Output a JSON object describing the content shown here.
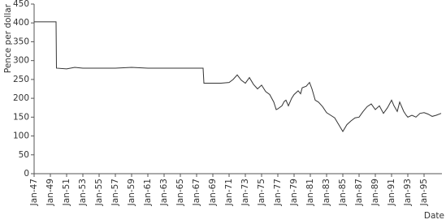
{
  "chart_data": {
    "type": "line",
    "y_label": "Pence per dollar",
    "x_label": "Date",
    "xlim": [
      1947,
      1997.2
    ],
    "ylim": [
      0,
      450
    ],
    "yticks": [
      0,
      50,
      100,
      150,
      200,
      250,
      300,
      350,
      400,
      450
    ],
    "xticks": [
      {
        "value": 1947,
        "label": "Jan-47"
      },
      {
        "value": 1949,
        "label": "Jan-49"
      },
      {
        "value": 1951,
        "label": "Jan-51"
      },
      {
        "value": 1953,
        "label": "Jan-53"
      },
      {
        "value": 1955,
        "label": "Jan-55"
      },
      {
        "value": 1957,
        "label": "Jan-57"
      },
      {
        "value": 1959,
        "label": "Jan-59"
      },
      {
        "value": 1961,
        "label": "Jan-61"
      },
      {
        "value": 1963,
        "label": "Jan-63"
      },
      {
        "value": 1965,
        "label": "Jan-65"
      },
      {
        "value": 1967,
        "label": "Jan-67"
      },
      {
        "value": 1969,
        "label": "Jan-69"
      },
      {
        "value": 1971,
        "label": "Jan-71"
      },
      {
        "value": 1973,
        "label": "Jan-73"
      },
      {
        "value": 1975,
        "label": "Jan-75"
      },
      {
        "value": 1977,
        "label": "Jan-77"
      },
      {
        "value": 1979,
        "label": "Jan-79"
      },
      {
        "value": 1981,
        "label": "Jan-81"
      },
      {
        "value": 1983,
        "label": "Jan-83"
      },
      {
        "value": 1985,
        "label": "Jan-85"
      },
      {
        "value": 1987,
        "label": "Jan-87"
      },
      {
        "value": 1989,
        "label": "Jan-89"
      },
      {
        "value": 1991,
        "label": "Jan-91"
      },
      {
        "value": 1993,
        "label": "Jan-93"
      },
      {
        "value": 1995,
        "label": "Jan-95"
      }
    ],
    "x": [
      1947,
      1949.7,
      1949.75,
      1951,
      1952,
      1953,
      1955,
      1957,
      1959,
      1961,
      1963,
      1965,
      1967.8,
      1967.9,
      1969,
      1970,
      1971,
      1971.5,
      1972,
      1972.5,
      1973,
      1973.5,
      1974,
      1974.5,
      1975,
      1975.5,
      1976,
      1976.5,
      1976.8,
      1977,
      1977.5,
      1977.8,
      1978,
      1978.3,
      1978.7,
      1979,
      1979.5,
      1979.8,
      1980,
      1980.5,
      1980.9,
      1981.2,
      1981.6,
      1982,
      1982.5,
      1983,
      1983.5,
      1984,
      1984.5,
      1985,
      1985.5,
      1986,
      1986.5,
      1987,
      1987.5,
      1988,
      1988.5,
      1989,
      1989.5,
      1990,
      1990.5,
      1991,
      1991.3,
      1991.7,
      1992,
      1992.5,
      1992.8,
      1993,
      1993.5,
      1994,
      1994.5,
      1995,
      1995.5,
      1996,
      1996.5,
      1997.1
    ],
    "series": [
      {
        "color": "#333333",
        "values": [
          403,
          403,
          280,
          278,
          282,
          280,
          280,
          280,
          282,
          280,
          280,
          280,
          280,
          240,
          240,
          240,
          242,
          250,
          262,
          248,
          240,
          255,
          237,
          225,
          235,
          218,
          210,
          190,
          170,
          172,
          180,
          192,
          195,
          180,
          200,
          210,
          220,
          212,
          228,
          232,
          242,
          225,
          195,
          190,
          178,
          162,
          155,
          148,
          130,
          112,
          130,
          140,
          148,
          150,
          165,
          178,
          185,
          170,
          180,
          160,
          175,
          195,
          180,
          165,
          190,
          165,
          155,
          150,
          155,
          150,
          160,
          162,
          158,
          152,
          155,
          160
        ]
      }
    ]
  }
}
